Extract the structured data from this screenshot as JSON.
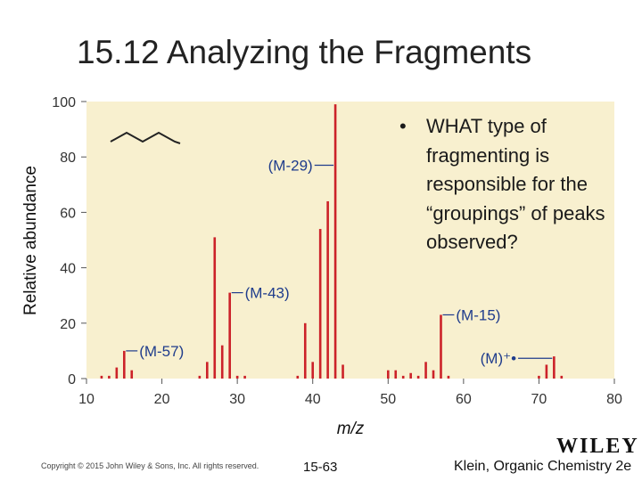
{
  "slide": {
    "title": "15.12 Analyzing the Fragments",
    "bullet": "WHAT type of fragmenting is responsible for the “groupings” of peaks observed?",
    "bullet_marker": "•",
    "copyright": "Copyright © 2015 John Wiley & Sons, Inc. All rights reserved.",
    "slide_number": "15-63",
    "book_ref": "Klein, Organic Chemistry 2e",
    "logo_text": "WILEY"
  },
  "chart_data": {
    "type": "bar",
    "xlabel": "m/z",
    "ylabel": "Relative abundance",
    "xlim": [
      10,
      80
    ],
    "ylim": [
      0,
      100
    ],
    "xticks": [
      10,
      20,
      30,
      40,
      50,
      60,
      70,
      80
    ],
    "yticks": [
      0,
      20,
      40,
      60,
      80,
      100
    ],
    "grid": false,
    "plot_background": "#f8f0cf",
    "bar_color": "#cc2229",
    "label_color": "#1f3c8c",
    "peaks": [
      {
        "x": 12,
        "y": 1
      },
      {
        "x": 13,
        "y": 1
      },
      {
        "x": 14,
        "y": 4
      },
      {
        "x": 15,
        "y": 10
      },
      {
        "x": 16,
        "y": 3
      },
      {
        "x": 25,
        "y": 1
      },
      {
        "x": 26,
        "y": 6
      },
      {
        "x": 27,
        "y": 51
      },
      {
        "x": 28,
        "y": 12
      },
      {
        "x": 29,
        "y": 31
      },
      {
        "x": 30,
        "y": 1
      },
      {
        "x": 31,
        "y": 1
      },
      {
        "x": 38,
        "y": 1
      },
      {
        "x": 39,
        "y": 20
      },
      {
        "x": 40,
        "y": 6
      },
      {
        "x": 41,
        "y": 54
      },
      {
        "x": 42,
        "y": 64
      },
      {
        "x": 43,
        "y": 99
      },
      {
        "x": 44,
        "y": 5
      },
      {
        "x": 50,
        "y": 3
      },
      {
        "x": 51,
        "y": 3
      },
      {
        "x": 52,
        "y": 1
      },
      {
        "x": 53,
        "y": 2
      },
      {
        "x": 54,
        "y": 1
      },
      {
        "x": 55,
        "y": 6
      },
      {
        "x": 56,
        "y": 3
      },
      {
        "x": 57,
        "y": 23
      },
      {
        "x": 58,
        "y": 1
      },
      {
        "x": 70,
        "y": 1
      },
      {
        "x": 71,
        "y": 5
      },
      {
        "x": 72,
        "y": 8
      },
      {
        "x": 73,
        "y": 1
      }
    ],
    "annotations": [
      {
        "text": "(M-57)",
        "x": 15,
        "y": 10
      },
      {
        "text": "(M-43)",
        "x": 29,
        "y": 31
      },
      {
        "text": "(M-29)",
        "x": 43,
        "y": 77
      },
      {
        "text": "(M-15)",
        "x": 57,
        "y": 23
      },
      {
        "text": "(M)⁺•",
        "x": 72,
        "y": 8
      }
    ],
    "molecule": "heptane skeletal structure"
  }
}
